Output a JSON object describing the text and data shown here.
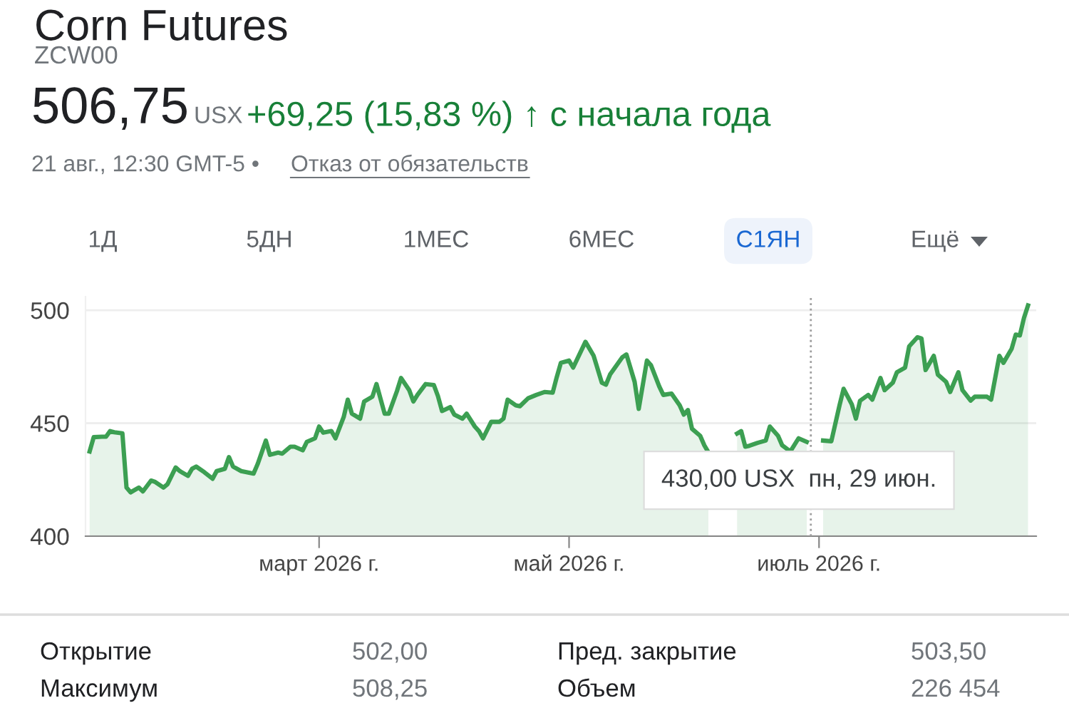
{
  "chart_data": {
    "type": "area",
    "title": "Corn Futures",
    "subtitle": "ZCW00",
    "x": [
      "2026-01-04",
      "2026-01-05",
      "2026-01-07",
      "2026-01-08",
      "2026-01-09",
      "2026-01-10",
      "2026-01-12",
      "2026-01-13",
      "2026-01-14",
      "2026-01-16",
      "2026-01-17",
      "2026-01-19",
      "2026-01-20",
      "2026-01-22",
      "2026-01-23",
      "2026-01-25",
      "2026-01-26",
      "2026-01-28",
      "2026-01-29",
      "2026-01-30",
      "2026-02-01",
      "2026-02-03",
      "2026-02-04",
      "2026-02-06",
      "2026-02-07",
      "2026-02-08",
      "2026-02-10",
      "2026-02-13",
      "2026-02-14",
      "2026-02-16",
      "2026-02-17",
      "2026-02-19",
      "2026-02-20",
      "2026-02-22",
      "2026-02-23",
      "2026-02-25",
      "2026-02-26",
      "2026-02-28",
      "2026-03-01",
      "2026-03-02",
      "2026-03-04",
      "2026-03-05",
      "2026-03-07",
      "2026-03-08",
      "2026-03-09",
      "2026-03-11",
      "2026-03-12",
      "2026-03-14",
      "2026-03-15",
      "2026-03-17",
      "2026-03-18",
      "2026-03-20",
      "2026-03-21",
      "2026-03-23",
      "2026-03-24",
      "2026-03-25",
      "2026-03-27",
      "2026-03-29",
      "2026-03-30",
      "2026-03-31",
      "2026-04-02",
      "2026-04-03",
      "2026-04-05",
      "2026-04-06",
      "2026-04-08",
      "2026-04-09",
      "2026-04-10",
      "2026-04-12",
      "2026-04-14",
      "2026-04-15",
      "2026-04-16",
      "2026-04-18",
      "2026-04-19",
      "2026-04-21",
      "2026-04-23",
      "2026-04-25",
      "2026-04-27",
      "2026-04-28",
      "2026-04-29",
      "2026-05-01",
      "2026-05-02",
      "2026-05-05",
      "2026-05-07",
      "2026-05-09",
      "2026-05-10",
      "2026-05-11",
      "2026-05-14",
      "2026-05-15",
      "2026-05-17",
      "2026-05-18",
      "2026-05-20",
      "2026-05-21",
      "2026-05-23",
      "2026-05-24",
      "2026-05-26",
      "2026-05-28",
      "2026-05-29",
      "2026-05-30",
      "2026-05-31",
      "2026-06-02",
      "2026-06-03",
      "2026-06-04",
      "2026-06-07",
      "2026-06-11",
      "2026-06-12",
      "2026-06-13",
      "2026-06-14",
      "2026-06-16",
      "2026-06-18",
      "2026-06-19",
      "2026-06-21",
      "2026-06-22",
      "2026-06-24",
      "2026-06-26",
      "2026-06-28",
      "2026-06-29",
      "2026-07-02",
      "2026-07-04",
      "2026-07-06",
      "2026-07-07",
      "2026-07-09",
      "2026-07-10",
      "2026-07-11",
      "2026-07-13",
      "2026-07-14",
      "2026-07-16",
      "2026-07-17",
      "2026-07-19",
      "2026-07-20",
      "2026-07-22",
      "2026-07-23",
      "2026-07-25",
      "2026-07-26",
      "2026-07-27",
      "2026-07-29",
      "2026-07-30",
      "2026-08-01",
      "2026-08-02",
      "2026-08-04",
      "2026-08-05",
      "2026-08-07",
      "2026-08-08",
      "2026-08-11",
      "2026-08-12",
      "2026-08-14",
      "2026-08-15",
      "2026-08-17",
      "2026-08-18",
      "2026-08-19",
      "2026-08-20",
      "2026-08-21"
    ],
    "series": [
      {
        "color": "#3c9f52",
        "values": [
          437.5,
          443.8,
          444,
          444,
          446.5,
          446,
          445.5,
          421.5,
          419.4,
          421.5,
          419.8,
          424.6,
          424,
          421.5,
          423,
          430.4,
          428.8,
          426.7,
          429.8,
          430.8,
          428.3,
          425.4,
          428.8,
          429.8,
          435,
          430.8,
          428.8,
          427.7,
          431.9,
          442.3,
          436,
          437,
          436.5,
          439.6,
          439.6,
          438,
          441.7,
          443.3,
          448.5,
          445.8,
          446.5,
          443.3,
          452.7,
          460.4,
          454.2,
          452,
          459.6,
          461.7,
          467.3,
          454.2,
          454.2,
          464.2,
          470,
          464.6,
          459.6,
          462.5,
          467.3,
          466.9,
          462,
          455.4,
          457.1,
          453.8,
          452,
          454.2,
          448.5,
          446.5,
          443.3,
          450.6,
          450.6,
          452,
          460.4,
          457.9,
          457.5,
          461,
          462.5,
          463.8,
          463.5,
          470.4,
          476.7,
          477.7,
          474.6,
          486,
          479.8,
          467.9,
          467,
          471.5,
          479.2,
          480.4,
          468.3,
          456.3,
          477.7,
          475.6,
          466.3,
          462.5,
          463.1,
          457.9,
          453.8,
          455.8,
          447.5,
          444.4,
          440.2,
          437.1,
          null,
          445.4,
          446.5,
          439.6,
          440,
          441.3,
          442.3,
          448.5,
          444.4,
          440.2,
          437.5,
          443.3,
          441.7,
          null,
          442.3,
          442,
          457.9,
          465.2,
          458.3,
          452,
          459.9,
          462.5,
          460.4,
          470,
          464.6,
          467.9,
          472.5,
          474.6,
          484,
          488,
          487.5,
          473.5,
          479.8,
          471.5,
          468.3,
          463.8,
          472.5,
          464.6,
          460,
          461.7,
          461.7,
          460.4,
          479.8,
          476.7,
          482.9,
          489.2,
          488.8,
          496.5,
          502.1
        ]
      }
    ],
    "xlim": [
      "2026-01-03",
      "2026-08-23"
    ],
    "xticks": [
      {
        "value": "2026-03-01",
        "label": "март 2026 г."
      },
      {
        "value": "2026-05-01",
        "label": "май 2026 г."
      },
      {
        "value": "2026-07-01",
        "label": "июль 2026 г."
      }
    ],
    "ylim": [
      400,
      506
    ],
    "yticks": [
      400,
      450,
      500
    ],
    "grid": "y",
    "legend": false,
    "ref_lines": [
      {
        "axis": "x",
        "value": "2026-06-29",
        "label": null,
        "color": "#9e9e9e",
        "line_style": "dotted"
      }
    ],
    "annotations": [
      "506,75",
      "USX",
      "+69,25 (15,83 %) ↑ с начала года",
      "21 авг., 12:30 GMT-5 •",
      "Отказ от обязательств",
      "1Д",
      "5ДН",
      "1МЕС",
      "6МЕС",
      "С1ЯН",
      "Ещё",
      {
        "text": "430,00 USX  пн, 29 июн.",
        "x": "2026-06-29",
        "y": 430
      },
      "Открытие",
      "502,00",
      "Пред. закрытие",
      "503,50",
      "Максимум",
      "508,25",
      "Объем",
      "226 454"
    ]
  }
}
